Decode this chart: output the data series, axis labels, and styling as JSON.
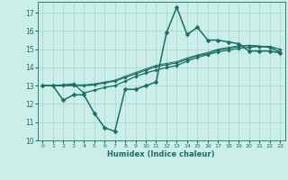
{
  "bg_color": "#cceee8",
  "grid_color": "#aad8d2",
  "line_color": "#1a6e64",
  "xlabel": "Humidex (Indice chaleur)",
  "xlim": [
    -0.5,
    23.5
  ],
  "ylim": [
    10,
    17.6
  ],
  "yticks": [
    10,
    11,
    12,
    13,
    14,
    15,
    16,
    17
  ],
  "xticks": [
    0,
    1,
    2,
    3,
    4,
    5,
    6,
    7,
    8,
    9,
    10,
    11,
    12,
    13,
    14,
    15,
    16,
    17,
    18,
    19,
    20,
    21,
    22,
    23
  ],
  "series": [
    {
      "x": [
        0,
        1,
        2,
        3,
        4,
        5,
        6,
        7,
        8,
        9,
        10,
        11,
        12,
        13,
        14,
        15,
        16,
        17,
        18,
        19,
        20,
        21,
        22,
        23
      ],
      "y": [
        13.0,
        13.0,
        12.2,
        12.5,
        12.5,
        11.5,
        10.7,
        10.5,
        12.8,
        12.8,
        13.0,
        13.2,
        15.9,
        17.3,
        15.8,
        16.2,
        15.5,
        15.5,
        15.4,
        15.3,
        14.9,
        14.9,
        14.9,
        14.8
      ],
      "marker": "D",
      "markersize": 2.5,
      "linewidth": 1.1
    },
    {
      "x": [
        0,
        1,
        2,
        3,
        4,
        5,
        6,
        7,
        8,
        9,
        10,
        11,
        12,
        13,
        14,
        15,
        16,
        17,
        18,
        19,
        20,
        21,
        22,
        23
      ],
      "y": [
        13.0,
        13.0,
        13.05,
        13.1,
        12.6,
        12.75,
        12.9,
        13.0,
        13.25,
        13.5,
        13.7,
        13.85,
        14.0,
        14.1,
        14.35,
        14.55,
        14.7,
        14.85,
        14.95,
        15.05,
        15.1,
        15.15,
        15.15,
        15.0
      ],
      "marker": "D",
      "markersize": 1.8,
      "linewidth": 0.9
    },
    {
      "x": [
        0,
        1,
        2,
        3,
        4,
        5,
        6,
        7,
        8,
        9,
        10,
        11,
        12,
        13,
        14,
        15,
        16,
        17,
        18,
        19,
        20,
        21,
        22,
        23
      ],
      "y": [
        13.0,
        13.0,
        13.0,
        13.0,
        13.0,
        13.05,
        13.15,
        13.25,
        13.45,
        13.65,
        13.85,
        14.05,
        14.15,
        14.25,
        14.45,
        14.65,
        14.75,
        14.95,
        15.05,
        15.15,
        15.2,
        15.15,
        15.1,
        14.85
      ],
      "marker": "D",
      "markersize": 1.8,
      "linewidth": 0.9
    },
    {
      "x": [
        0,
        1,
        2,
        3,
        4,
        5,
        6,
        7,
        8,
        9,
        10,
        11,
        12,
        13,
        14,
        15,
        16,
        17,
        18,
        19,
        20,
        21,
        22,
        23
      ],
      "y": [
        13.0,
        13.0,
        12.98,
        13.05,
        13.05,
        13.1,
        13.2,
        13.3,
        13.52,
        13.72,
        13.92,
        14.12,
        14.22,
        14.32,
        14.52,
        14.68,
        14.82,
        15.0,
        15.1,
        15.18,
        15.22,
        15.18,
        15.12,
        14.82
      ],
      "marker": null,
      "markersize": 0,
      "linewidth": 0.7
    }
  ]
}
